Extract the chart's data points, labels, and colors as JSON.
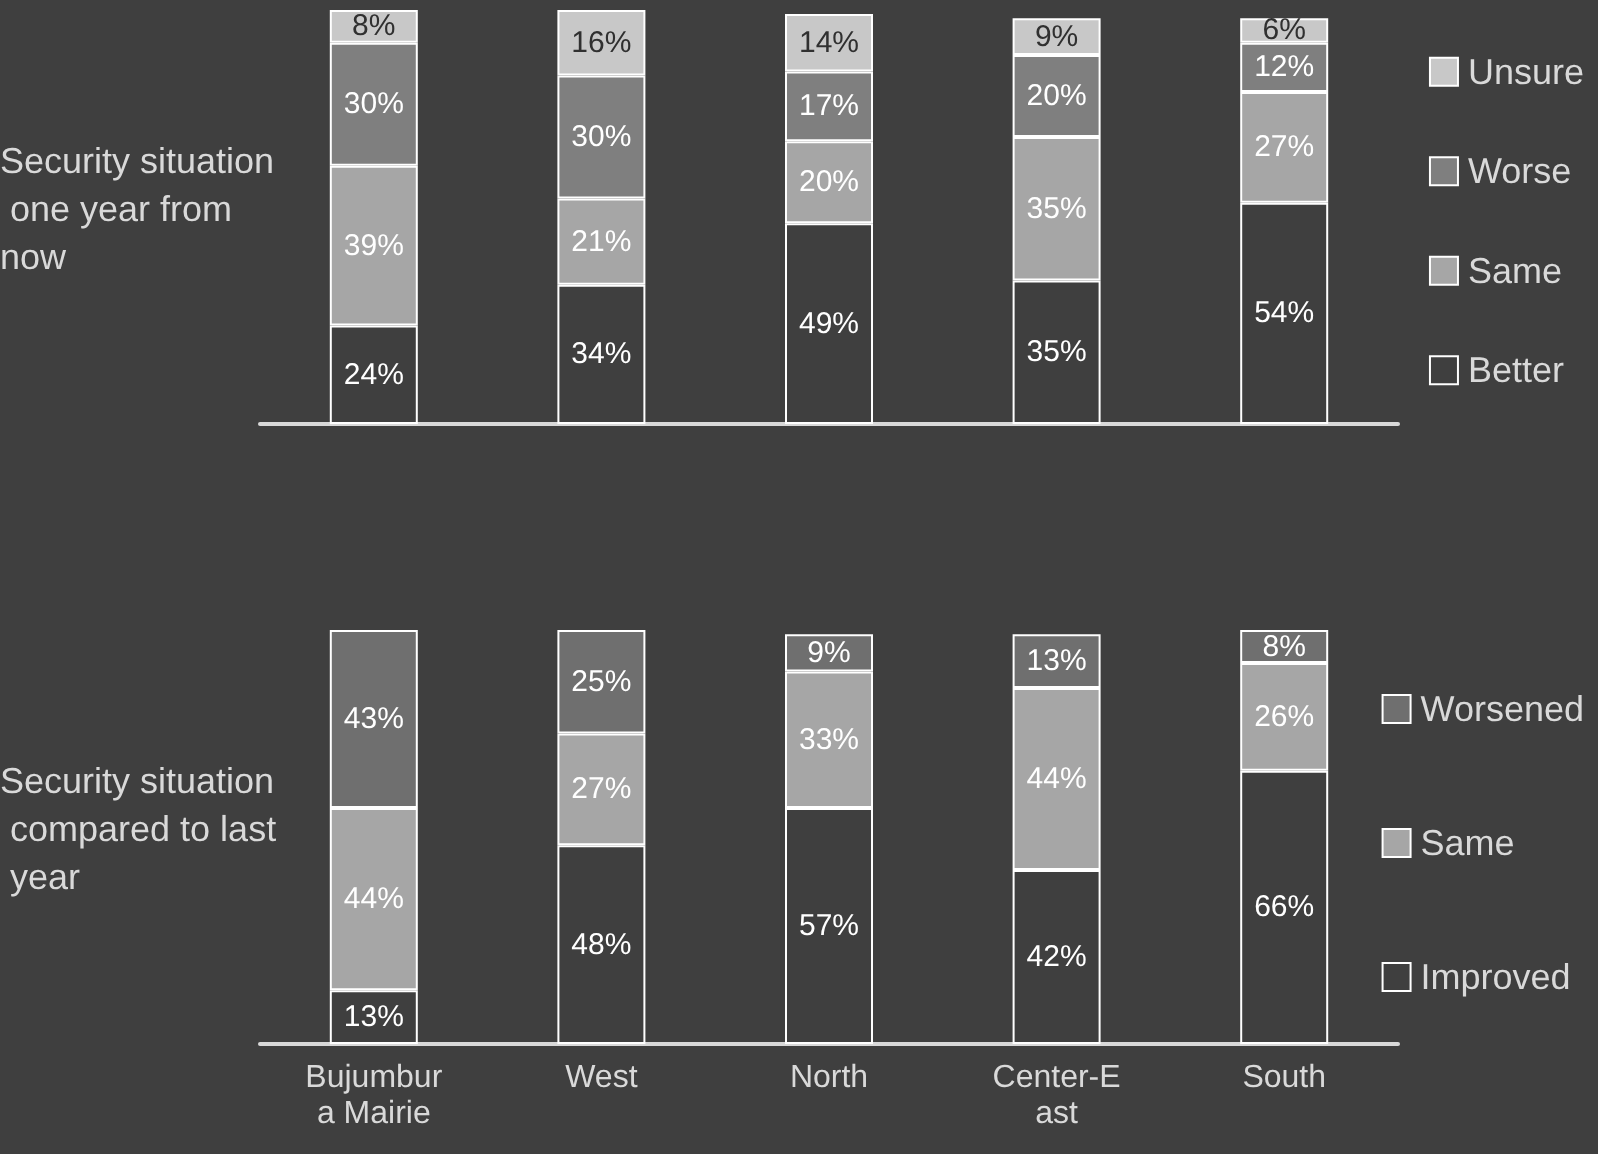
{
  "chart_data": [
    {
      "type": "bar",
      "stacked": true,
      "ylabel": "Security situation one year from now",
      "categories": [
        "Bujumbura Mairie",
        "West",
        "North",
        "Center-East",
        "South"
      ],
      "tick_labels": false,
      "legend": "right",
      "series": [
        {
          "name": "Better",
          "color": "#3f3f3f",
          "values": [
            24,
            34,
            49,
            35,
            54
          ],
          "value_labels": [
            "24%",
            "34%",
            "49%",
            "35%",
            "54%"
          ]
        },
        {
          "name": "Same",
          "color": "#a6a6a6",
          "values": [
            39,
            21,
            20,
            35,
            27
          ],
          "value_labels": [
            "39%",
            "21%",
            "20%",
            "35%",
            "27%"
          ]
        },
        {
          "name": "Worse",
          "color": "#7f7f7f",
          "values": [
            30,
            30,
            17,
            20,
            12
          ],
          "value_labels": [
            "30%",
            "30%",
            "17%",
            "20%",
            "12%"
          ]
        },
        {
          "name": "Unsure",
          "color": "#c8c8c8",
          "values": [
            8,
            16,
            14,
            9,
            6
          ],
          "value_labels": [
            "8%",
            "16%",
            "14%",
            "9%",
            "6%"
          ]
        }
      ]
    },
    {
      "type": "bar",
      "stacked": true,
      "ylabel": "Security situation compared to last year",
      "categories": [
        "Bujumbura Mairie",
        "West",
        "North",
        "Center-East",
        "South"
      ],
      "tick_labels": "x",
      "legend": "right",
      "series": [
        {
          "name": "Improved",
          "color": "#3f3f3f",
          "values": [
            13,
            48,
            57,
            42,
            66
          ],
          "value_labels": [
            "13%",
            "48%",
            "57%",
            "42%",
            "66%"
          ]
        },
        {
          "name": "Same",
          "color": "#a6a6a6",
          "values": [
            44,
            27,
            33,
            44,
            26
          ],
          "value_labels": [
            "44%",
            "27%",
            "33%",
            "44%",
            "26%"
          ]
        },
        {
          "name": "Worsened",
          "color": "#6f6f6f",
          "values": [
            43,
            25,
            9,
            13,
            8
          ],
          "value_labels": [
            "43%",
            "25%",
            "9%",
            "13%",
            "8%"
          ]
        }
      ]
    }
  ]
}
